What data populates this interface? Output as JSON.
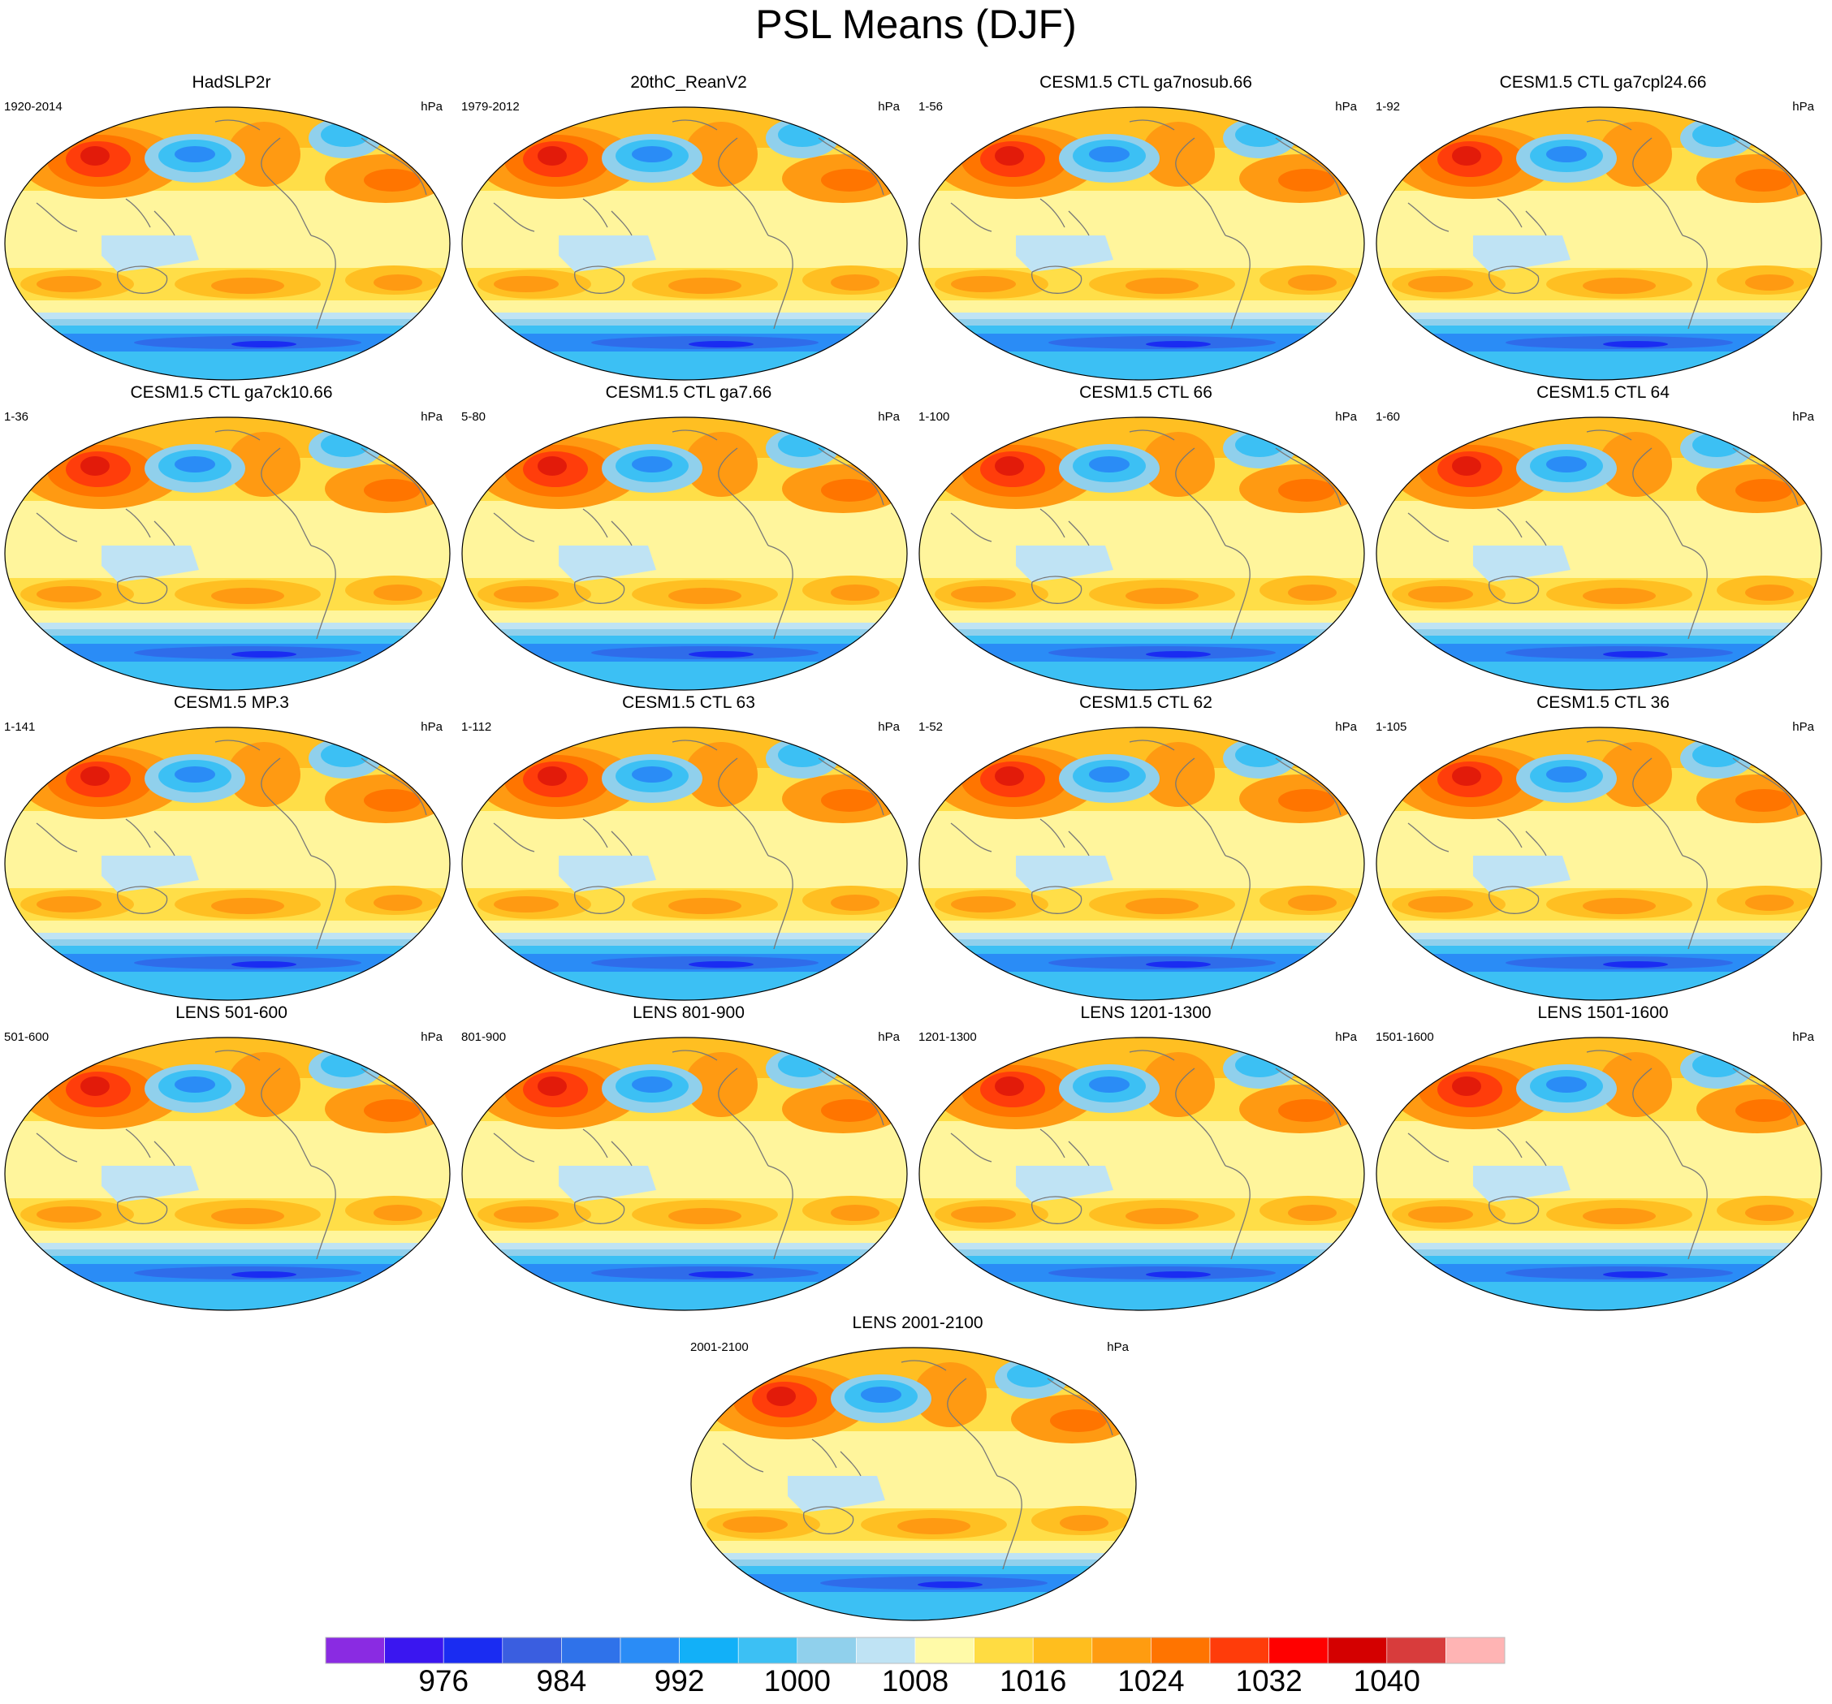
{
  "figure": {
    "title": "PSL Means (DJF)",
    "units": "hPa"
  },
  "panels": [
    {
      "title": "HadSLP2r",
      "period": "1920-2014",
      "units": "hPa"
    },
    {
      "title": "20thC_ReanV2",
      "period": "1979-2012",
      "units": "hPa"
    },
    {
      "title": "CESM1.5 CTL ga7nosub.66",
      "period": "1-56",
      "units": "hPa"
    },
    {
      "title": "CESM1.5 CTL ga7cpl24.66",
      "period": "1-92",
      "units": "hPa"
    },
    {
      "title": "CESM1.5 CTL ga7ck10.66",
      "period": "1-36",
      "units": "hPa"
    },
    {
      "title": "CESM1.5 CTL ga7.66",
      "period": "5-80",
      "units": "hPa"
    },
    {
      "title": "CESM1.5 CTL 66",
      "period": "1-100",
      "units": "hPa"
    },
    {
      "title": "CESM1.5 CTL 64",
      "period": "1-60",
      "units": "hPa"
    },
    {
      "title": "CESM1.5 MP.3",
      "period": "1-141",
      "units": "hPa"
    },
    {
      "title": "CESM1.5 CTL 63",
      "period": "1-112",
      "units": "hPa"
    },
    {
      "title": "CESM1.5 CTL 62",
      "period": "1-52",
      "units": "hPa"
    },
    {
      "title": "CESM1.5 CTL 36",
      "period": "1-105",
      "units": "hPa"
    },
    {
      "title": "LENS 501-600",
      "period": "501-600",
      "units": "hPa"
    },
    {
      "title": "LENS 801-900",
      "period": "801-900",
      "units": "hPa"
    },
    {
      "title": "LENS 1201-1300",
      "period": "1201-1300",
      "units": "hPa"
    },
    {
      "title": "LENS 1501-1600",
      "period": "1501-1600",
      "units": "hPa"
    },
    {
      "title": "LENS 2001-2100",
      "period": "2001-2100",
      "units": "hPa"
    }
  ],
  "colorbar": {
    "colors": [
      "#8a2be2",
      "#3a16f0",
      "#1a2cf2",
      "#3a5ee0",
      "#2f72ea",
      "#2a8cf6",
      "#12b0f8",
      "#3cc0f4",
      "#90d0ec",
      "#bfe3f4",
      "#fffaa8",
      "#ffdc42",
      "#ffbe1e",
      "#ff9c10",
      "#ff7400",
      "#ff3c0a",
      "#ff0000",
      "#d40000",
      "#d83c3c",
      "#ffb4b4"
    ],
    "labels": [
      "976",
      "984",
      "992",
      "1000",
      "1008",
      "1016",
      "1024",
      "1032",
      "1040"
    ]
  },
  "map_colors": {
    "background": "#fff59c",
    "yellow": "#ffde48",
    "orange_light": "#ffbf22",
    "orange": "#ff9a12",
    "orange_dark": "#ff7500",
    "red": "#ff3d0b",
    "deep_red": "#e21b0a",
    "light_blue": "#bfe3f4",
    "blue1": "#90d0ec",
    "blue2": "#3cc0f4",
    "blue3": "#2a8cf6",
    "blue4": "#2f6cea",
    "blue5": "#1a2cf2",
    "coast": "#777777"
  }
}
